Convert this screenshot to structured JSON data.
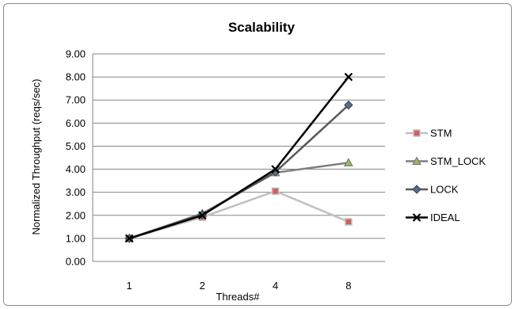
{
  "chart_data": {
    "type": "line",
    "title": "Scalability",
    "xlabel": "Threads#",
    "ylabel": "Normalized Throughput (reqs/sec)",
    "categories": [
      "1",
      "2",
      "4",
      "8"
    ],
    "ylim": [
      0,
      9
    ],
    "yticks": [
      "0.00",
      "1.00",
      "2.00",
      "3.00",
      "4.00",
      "5.00",
      "6.00",
      "7.00",
      "8.00",
      "9.00"
    ],
    "grid": true,
    "legend_position": "right",
    "series": [
      {
        "name": "STM",
        "values": [
          1.0,
          1.92,
          3.05,
          1.72
        ],
        "color": "#c0c0c0",
        "marker": "square",
        "marker_color": "#d06060"
      },
      {
        "name": "STM_LOCK",
        "values": [
          1.0,
          2.08,
          3.85,
          4.28
        ],
        "color": "#7f7f7f",
        "marker": "triangle",
        "marker_color": "#9bbb59"
      },
      {
        "name": "LOCK",
        "values": [
          1.0,
          2.04,
          3.88,
          6.78
        ],
        "color": "#595959",
        "marker": "diamond",
        "marker_color": "#4f6e9a"
      },
      {
        "name": "IDEAL",
        "values": [
          1.0,
          2.0,
          4.0,
          8.0
        ],
        "color": "#000000",
        "marker": "x",
        "marker_color": "#000000"
      }
    ]
  }
}
